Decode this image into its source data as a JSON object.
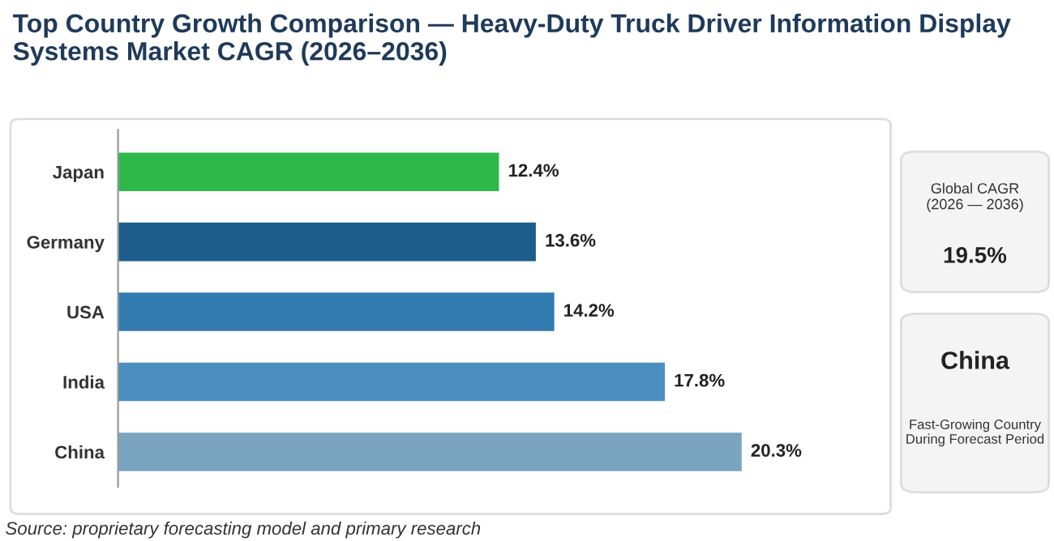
{
  "chart_data": {
    "type": "bar",
    "orientation": "horizontal",
    "title": "Top Country Growth Comparison — Heavy-Duty Truck Driver Information Display Systems Market CAGR (2026–2036)",
    "categories": [
      "Japan",
      "Germany",
      "USA",
      "India",
      "China"
    ],
    "values": [
      12.4,
      13.6,
      14.2,
      17.8,
      20.3
    ],
    "colors": [
      "#2fb84a",
      "#1c5d8c",
      "#327bb0",
      "#4b8fc0",
      "#79a5c1"
    ],
    "value_labels": [
      "12.4%",
      "13.6%",
      "14.2%",
      "17.8%",
      "20.3%"
    ],
    "grid": false,
    "legend": false,
    "annotations": [
      "Source: proprietary forecasting model and primary research",
      "Global CAGR\n(2026 — 2036)",
      "19.5%",
      "China",
      "Fast-Growing Country\nDuring Forecast Period"
    ]
  }
}
